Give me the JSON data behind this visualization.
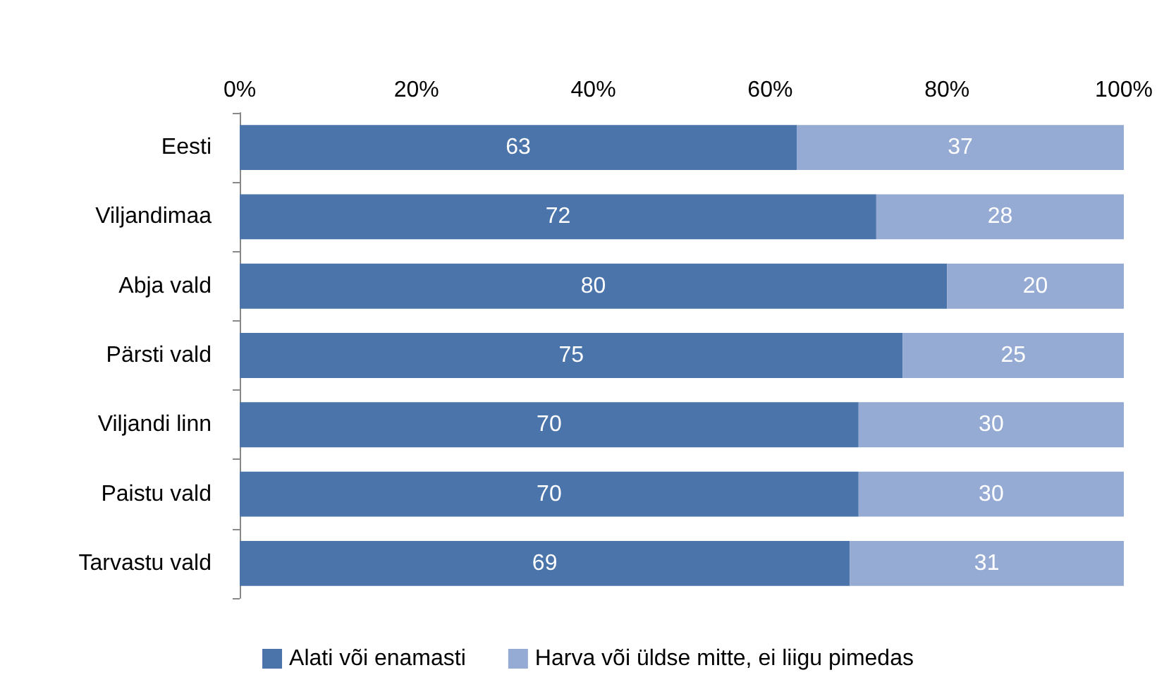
{
  "chart_data": {
    "type": "bar",
    "orientation": "horizontal",
    "stacked": true,
    "data_labels": true,
    "legend": "bottom",
    "categories": [
      "Eesti",
      "Viljandimaa",
      "Abja vald",
      "Pärsti vald",
      "Viljandi linn",
      "Paistu vald",
      "Tarvastu vald"
    ],
    "series": [
      {
        "name": "Alati või enamasti",
        "color": "#4a74aa",
        "values": [
          63,
          72,
          80,
          75,
          70,
          70,
          69
        ]
      },
      {
        "name": "Harva või üldse mitte, ei liigu pimedas",
        "color": "#95abd4",
        "values": [
          37,
          28,
          20,
          25,
          30,
          30,
          31
        ]
      }
    ],
    "xlim": [
      0,
      100
    ],
    "xticks": [
      {
        "value": 0,
        "label": "0%"
      },
      {
        "value": 20,
        "label": "20%"
      },
      {
        "value": 40,
        "label": "40%"
      },
      {
        "value": 60,
        "label": "60%"
      },
      {
        "value": 80,
        "label": "80%"
      },
      {
        "value": 100,
        "label": "100%"
      }
    ]
  }
}
